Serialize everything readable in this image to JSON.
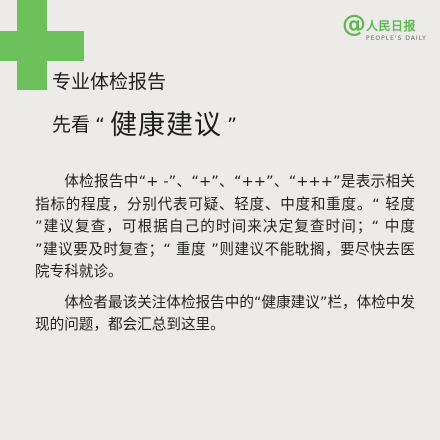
{
  "logo": {
    "at_symbol": "@",
    "name": "人民日报",
    "english": "PEOPLE'S DAILY"
  },
  "header": {
    "line1": "专业体检报告",
    "line2_prefix": "先看",
    "line2_open_quote": "“",
    "line2_emphasis": "健康建议",
    "line2_close_quote": "”"
  },
  "paragraphs": [
    "体检报告中“+ -”、“+”、“++”、“+++”是表示相关指标的程度，分别代表可疑、轻度、中度和重度。“ 轻度 ”建议复查，可根据自己的时间来决定复查时间；“ 中度 ”建议要及时复查；“ 重度 ”则建议不能耽搁，要尽快去医院专科就诊。",
    "体检者最该关注体检报告中的“健康建议”栏，体检中发现的问题，都会汇总到这里。"
  ],
  "colors": {
    "accent": "#6cc15d",
    "background": "#ecebe9",
    "text": "#222222"
  }
}
